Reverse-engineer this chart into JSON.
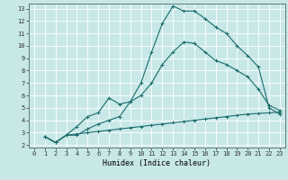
{
  "xlabel": "Humidex (Indice chaleur)",
  "background_color": "#c8e8e8",
  "grid_color": "#ffffff",
  "line_color": "#1a6b6b",
  "xlim": [
    -0.5,
    23.5
  ],
  "ylim": [
    1.8,
    13.4
  ],
  "xticks": [
    0,
    1,
    2,
    3,
    4,
    5,
    6,
    7,
    8,
    9,
    10,
    11,
    12,
    13,
    14,
    15,
    16,
    17,
    18,
    19,
    20,
    21,
    22,
    23
  ],
  "yticks": [
    2,
    3,
    4,
    5,
    6,
    7,
    8,
    9,
    10,
    11,
    12,
    13
  ],
  "line1_x": [
    1,
    2,
    3,
    4,
    5,
    6,
    7,
    8,
    9,
    10,
    11,
    12,
    13,
    14,
    15,
    16,
    17,
    18,
    19,
    20,
    21,
    22,
    23
  ],
  "line1_y": [
    2.7,
    2.2,
    2.8,
    2.8,
    3.3,
    3.7,
    4.0,
    4.3,
    5.5,
    7.0,
    9.5,
    11.8,
    13.2,
    12.8,
    12.8,
    12.2,
    11.5,
    11.0,
    10.0,
    9.2,
    8.3,
    5.0,
    4.5
  ],
  "line2_x": [
    1,
    2,
    3,
    4,
    5,
    6,
    7,
    8,
    9,
    10,
    11,
    12,
    13,
    14,
    15,
    16,
    17,
    18,
    19,
    20,
    21,
    22,
    23
  ],
  "line2_y": [
    2.7,
    2.2,
    2.8,
    3.5,
    4.3,
    4.6,
    5.8,
    5.3,
    5.5,
    6.0,
    7.0,
    8.5,
    9.5,
    10.3,
    10.2,
    9.5,
    8.8,
    8.5,
    8.0,
    7.5,
    6.5,
    5.2,
    4.8
  ],
  "line3_x": [
    1,
    2,
    3,
    4,
    5,
    6,
    7,
    8,
    9,
    10,
    11,
    12,
    13,
    14,
    15,
    16,
    17,
    18,
    19,
    20,
    21,
    22,
    23
  ],
  "line3_y": [
    2.7,
    2.2,
    2.8,
    2.9,
    3.0,
    3.1,
    3.2,
    3.3,
    3.4,
    3.5,
    3.6,
    3.7,
    3.8,
    3.9,
    4.0,
    4.1,
    4.2,
    4.3,
    4.4,
    4.5,
    4.55,
    4.6,
    4.65
  ],
  "marker": "+",
  "markersize": 3,
  "linewidth": 0.8
}
